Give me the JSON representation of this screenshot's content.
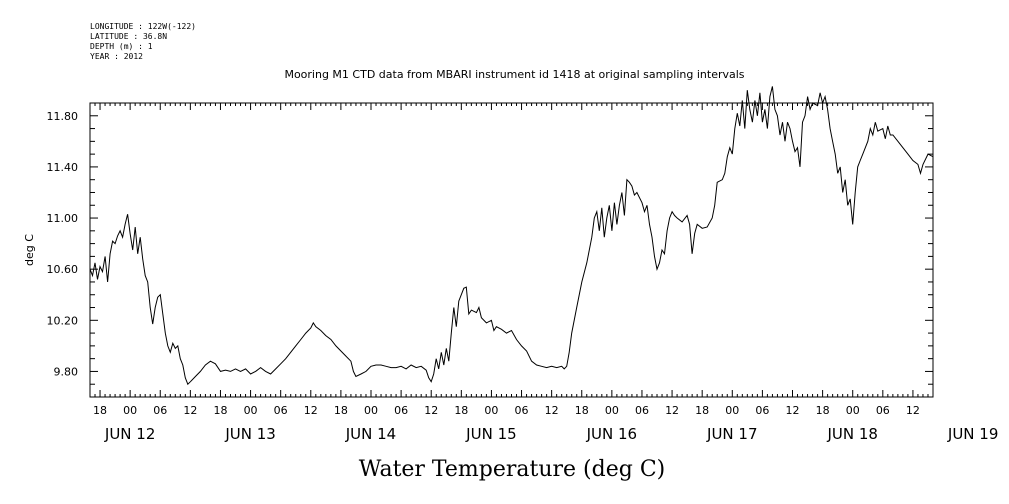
{
  "meta": {
    "longitude": "LONGITUDE : 122W(-122)",
    "latitude": "LATITUDE : 36.8N",
    "depth": "DEPTH (m) : 1",
    "year": "YEAR : 2012"
  },
  "chart_data": {
    "type": "line",
    "title": "Mooring M1 CTD data from MBARI instrument id 1418 at original sampling intervals",
    "xlabel": "Water Temperature (deg C)",
    "ylabel": "deg C",
    "xlim": [
      -8,
      160
    ],
    "ylim": [
      9.6,
      11.9
    ],
    "yticks": [
      "9.80",
      "10.20",
      "10.60",
      "11.00",
      "11.40",
      "11.80"
    ],
    "ytick_values": [
      9.8,
      10.2,
      10.6,
      11.0,
      11.4,
      11.8
    ],
    "hour_ticks": [
      {
        "h": -6,
        "label": "18"
      },
      {
        "h": 0,
        "label": "00"
      },
      {
        "h": 6,
        "label": "06"
      },
      {
        "h": 12,
        "label": "12"
      },
      {
        "h": 18,
        "label": "18"
      },
      {
        "h": 24,
        "label": "00"
      },
      {
        "h": 30,
        "label": "06"
      },
      {
        "h": 36,
        "label": "12"
      },
      {
        "h": 42,
        "label": "18"
      },
      {
        "h": 48,
        "label": "00"
      },
      {
        "h": 54,
        "label": "06"
      },
      {
        "h": 60,
        "label": "12"
      },
      {
        "h": 66,
        "label": "18"
      },
      {
        "h": 72,
        "label": "00"
      },
      {
        "h": 78,
        "label": "06"
      },
      {
        "h": 84,
        "label": "12"
      },
      {
        "h": 90,
        "label": "18"
      },
      {
        "h": 96,
        "label": "00"
      },
      {
        "h": 102,
        "label": "06"
      },
      {
        "h": 108,
        "label": "12"
      },
      {
        "h": 114,
        "label": "18"
      },
      {
        "h": 120,
        "label": "00"
      },
      {
        "h": 126,
        "label": "06"
      },
      {
        "h": 132,
        "label": "12"
      },
      {
        "h": 138,
        "label": "18"
      },
      {
        "h": 144,
        "label": "00"
      },
      {
        "h": 150,
        "label": "06"
      },
      {
        "h": 156,
        "label": "12"
      }
    ],
    "day_labels": [
      {
        "h": 0,
        "label": "JUN 12"
      },
      {
        "h": 24,
        "label": "JUN 13"
      },
      {
        "h": 48,
        "label": "JUN 14"
      },
      {
        "h": 72,
        "label": "JUN 15"
      },
      {
        "h": 96,
        "label": "JUN 16"
      },
      {
        "h": 120,
        "label": "JUN 17"
      },
      {
        "h": 144,
        "label": "JUN 18"
      },
      {
        "h": 168,
        "label": "JUN 19"
      }
    ],
    "series": [
      {
        "points": [
          [
            -8,
            10.6
          ],
          [
            -7.5,
            10.55
          ],
          [
            -7,
            10.65
          ],
          [
            -6.5,
            10.52
          ],
          [
            -6,
            10.62
          ],
          [
            -5.5,
            10.58
          ],
          [
            -5,
            10.7
          ],
          [
            -4.5,
            10.5
          ],
          [
            -4,
            10.72
          ],
          [
            -3.5,
            10.82
          ],
          [
            -3,
            10.8
          ],
          [
            -2.5,
            10.86
          ],
          [
            -2,
            10.9
          ],
          [
            -1.5,
            10.85
          ],
          [
            -1,
            10.95
          ],
          [
            -0.5,
            11.03
          ],
          [
            0,
            10.88
          ],
          [
            0.5,
            10.75
          ],
          [
            1,
            10.93
          ],
          [
            1.5,
            10.72
          ],
          [
            2,
            10.85
          ],
          [
            2.5,
            10.68
          ],
          [
            3,
            10.55
          ],
          [
            3.5,
            10.5
          ],
          [
            4,
            10.3
          ],
          [
            4.5,
            10.17
          ],
          [
            5,
            10.3
          ],
          [
            5.5,
            10.38
          ],
          [
            6,
            10.4
          ],
          [
            6.5,
            10.25
          ],
          [
            7,
            10.1
          ],
          [
            7.5,
            10.0
          ],
          [
            8,
            9.95
          ],
          [
            8.5,
            10.02
          ],
          [
            9,
            9.98
          ],
          [
            9.5,
            10.0
          ],
          [
            10,
            9.9
          ],
          [
            10.5,
            9.85
          ],
          [
            11,
            9.75
          ],
          [
            11.5,
            9.7
          ],
          [
            12,
            9.72
          ],
          [
            13,
            9.76
          ],
          [
            14,
            9.8
          ],
          [
            15,
            9.85
          ],
          [
            16,
            9.88
          ],
          [
            17,
            9.86
          ],
          [
            18,
            9.8
          ],
          [
            19,
            9.81
          ],
          [
            20,
            9.8
          ],
          [
            21,
            9.82
          ],
          [
            22,
            9.8
          ],
          [
            23,
            9.82
          ],
          [
            24,
            9.78
          ],
          [
            25,
            9.8
          ],
          [
            26,
            9.83
          ],
          [
            27,
            9.8
          ],
          [
            28,
            9.78
          ],
          [
            29,
            9.82
          ],
          [
            30,
            9.86
          ],
          [
            31,
            9.9
          ],
          [
            32,
            9.95
          ],
          [
            33,
            10.0
          ],
          [
            34,
            10.05
          ],
          [
            35,
            10.1
          ],
          [
            36,
            10.14
          ],
          [
            36.5,
            10.18
          ],
          [
            37,
            10.15
          ],
          [
            38,
            10.12
          ],
          [
            39,
            10.08
          ],
          [
            40,
            10.05
          ],
          [
            41,
            10.0
          ],
          [
            42,
            9.96
          ],
          [
            43,
            9.92
          ],
          [
            44,
            9.88
          ],
          [
            44.5,
            9.8
          ],
          [
            45,
            9.76
          ],
          [
            46,
            9.78
          ],
          [
            47,
            9.8
          ],
          [
            48,
            9.84
          ],
          [
            49,
            9.85
          ],
          [
            50,
            9.85
          ],
          [
            51,
            9.84
          ],
          [
            52,
            9.83
          ],
          [
            53,
            9.83
          ],
          [
            54,
            9.84
          ],
          [
            55,
            9.82
          ],
          [
            56,
            9.85
          ],
          [
            57,
            9.83
          ],
          [
            58,
            9.84
          ],
          [
            59,
            9.81
          ],
          [
            59.5,
            9.75
          ],
          [
            60,
            9.72
          ],
          [
            60.5,
            9.78
          ],
          [
            61,
            9.9
          ],
          [
            61.5,
            9.82
          ],
          [
            62,
            9.95
          ],
          [
            62.5,
            9.85
          ],
          [
            63,
            9.98
          ],
          [
            63.5,
            9.88
          ],
          [
            64,
            10.1
          ],
          [
            64.5,
            10.3
          ],
          [
            65,
            10.15
          ],
          [
            65.5,
            10.35
          ],
          [
            66,
            10.4
          ],
          [
            66.5,
            10.45
          ],
          [
            67,
            10.46
          ],
          [
            67.5,
            10.25
          ],
          [
            68,
            10.28
          ],
          [
            69,
            10.26
          ],
          [
            69.5,
            10.3
          ],
          [
            70,
            10.22
          ],
          [
            71,
            10.18
          ],
          [
            72,
            10.2
          ],
          [
            72.5,
            10.12
          ],
          [
            73,
            10.15
          ],
          [
            74,
            10.13
          ],
          [
            75,
            10.1
          ],
          [
            76,
            10.12
          ],
          [
            77,
            10.05
          ],
          [
            78,
            10.0
          ],
          [
            79,
            9.96
          ],
          [
            80,
            9.88
          ],
          [
            81,
            9.85
          ],
          [
            82,
            9.84
          ],
          [
            83,
            9.83
          ],
          [
            84,
            9.84
          ],
          [
            85,
            9.83
          ],
          [
            86,
            9.84
          ],
          [
            86.5,
            9.82
          ],
          [
            87,
            9.84
          ],
          [
            87.5,
            9.95
          ],
          [
            88,
            10.1
          ],
          [
            89,
            10.3
          ],
          [
            90,
            10.5
          ],
          [
            91,
            10.65
          ],
          [
            92,
            10.85
          ],
          [
            92.5,
            11.0
          ],
          [
            93,
            11.05
          ],
          [
            93.5,
            10.9
          ],
          [
            94,
            11.08
          ],
          [
            94.5,
            10.85
          ],
          [
            95,
            11.0
          ],
          [
            95.5,
            11.1
          ],
          [
            96,
            10.9
          ],
          [
            96.5,
            11.12
          ],
          [
            97,
            10.95
          ],
          [
            97.5,
            11.1
          ],
          [
            98,
            11.2
          ],
          [
            98.5,
            11.02
          ],
          [
            99,
            11.3
          ],
          [
            99.5,
            11.28
          ],
          [
            100,
            11.25
          ],
          [
            100.5,
            11.18
          ],
          [
            101,
            11.2
          ],
          [
            102,
            11.12
          ],
          [
            102.5,
            11.05
          ],
          [
            103,
            11.1
          ],
          [
            103.5,
            10.95
          ],
          [
            104,
            10.85
          ],
          [
            104.5,
            10.7
          ],
          [
            105,
            10.6
          ],
          [
            105.5,
            10.65
          ],
          [
            106,
            10.75
          ],
          [
            106.5,
            10.72
          ],
          [
            107,
            10.9
          ],
          [
            107.5,
            11.0
          ],
          [
            108,
            11.05
          ],
          [
            108.5,
            11.02
          ],
          [
            109,
            11.0
          ],
          [
            110,
            10.97
          ],
          [
            111,
            11.02
          ],
          [
            111.5,
            10.95
          ],
          [
            112,
            10.72
          ],
          [
            112.5,
            10.88
          ],
          [
            113,
            10.95
          ],
          [
            114,
            10.92
          ],
          [
            115,
            10.93
          ],
          [
            116,
            11.0
          ],
          [
            116.5,
            11.1
          ],
          [
            117,
            11.28
          ],
          [
            118,
            11.3
          ],
          [
            118.5,
            11.35
          ],
          [
            119,
            11.48
          ],
          [
            119.5,
            11.55
          ],
          [
            120,
            11.5
          ],
          [
            120.5,
            11.7
          ],
          [
            121,
            11.82
          ],
          [
            121.5,
            11.72
          ],
          [
            122,
            11.92
          ],
          [
            122.5,
            11.7
          ],
          [
            123,
            12.0
          ],
          [
            123.5,
            11.85
          ],
          [
            124,
            11.75
          ],
          [
            124.5,
            11.92
          ],
          [
            125,
            11.8
          ],
          [
            125.5,
            11.98
          ],
          [
            126,
            11.75
          ],
          [
            126.5,
            11.85
          ],
          [
            127,
            11.7
          ],
          [
            127.5,
            11.95
          ],
          [
            128,
            12.03
          ],
          [
            128.5,
            11.85
          ],
          [
            129,
            11.8
          ],
          [
            129.5,
            11.65
          ],
          [
            130,
            11.75
          ],
          [
            130.5,
            11.6
          ],
          [
            131,
            11.75
          ],
          [
            131.5,
            11.7
          ],
          [
            132,
            11.6
          ],
          [
            132.5,
            11.52
          ],
          [
            133,
            11.55
          ],
          [
            133.5,
            11.4
          ],
          [
            134,
            11.75
          ],
          [
            134.5,
            11.8
          ],
          [
            135,
            11.95
          ],
          [
            135.5,
            11.85
          ],
          [
            136,
            11.9
          ],
          [
            137,
            11.88
          ],
          [
            137.5,
            11.98
          ],
          [
            138,
            11.9
          ],
          [
            138.5,
            11.95
          ],
          [
            139,
            11.85
          ],
          [
            139.5,
            11.7
          ],
          [
            140,
            11.6
          ],
          [
            140.5,
            11.5
          ],
          [
            141,
            11.35
          ],
          [
            141.5,
            11.4
          ],
          [
            142,
            11.2
          ],
          [
            142.5,
            11.3
          ],
          [
            143,
            11.1
          ],
          [
            143.5,
            11.15
          ],
          [
            144,
            10.95
          ],
          [
            144.5,
            11.2
          ],
          [
            145,
            11.4
          ],
          [
            145.5,
            11.45
          ],
          [
            146,
            11.5
          ],
          [
            146.5,
            11.55
          ],
          [
            147,
            11.6
          ],
          [
            147.5,
            11.7
          ],
          [
            148,
            11.65
          ],
          [
            148.5,
            11.75
          ],
          [
            149,
            11.68
          ],
          [
            150,
            11.7
          ],
          [
            150.5,
            11.62
          ],
          [
            151,
            11.72
          ],
          [
            151.5,
            11.65
          ],
          [
            152,
            11.65
          ],
          [
            153,
            11.6
          ],
          [
            154,
            11.55
          ],
          [
            155,
            11.5
          ],
          [
            156,
            11.45
          ],
          [
            157,
            11.42
          ],
          [
            157.5,
            11.35
          ],
          [
            158,
            11.42
          ],
          [
            159,
            11.5
          ],
          [
            160,
            11.48
          ]
        ]
      }
    ]
  }
}
